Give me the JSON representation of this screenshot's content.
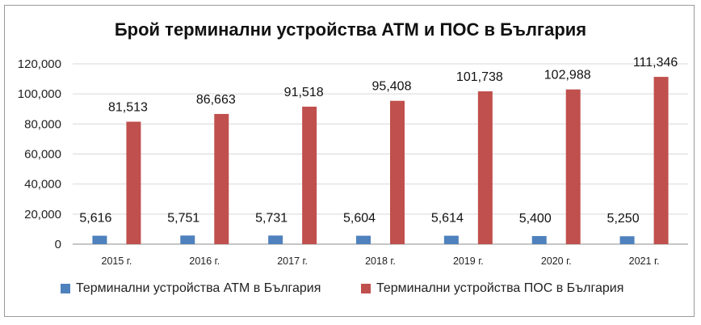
{
  "chart_data": {
    "type": "bar",
    "title": "Брой терминални устройства АТМ и ПОС в България",
    "categories": [
      "2015 г.",
      "2016 г.",
      "2017 г.",
      "2018 г.",
      "2019 г.",
      "2020 г.",
      "2021 г."
    ],
    "series": [
      {
        "name": "Терминални устройства АТМ в България",
        "color": "#4f81bd",
        "values": [
          5616,
          5751,
          5731,
          5604,
          5614,
          5400,
          5250
        ],
        "labels": [
          "5,616",
          "5,751",
          "5,731",
          "5,604",
          "5,614",
          "5,400",
          "5,250"
        ]
      },
      {
        "name": "Терминални устройства ПОС в България",
        "color": "#c0504d",
        "values": [
          81513,
          86663,
          91518,
          95408,
          101738,
          102988,
          111346
        ],
        "labels": [
          "81,513",
          "86,663",
          "91,518",
          "95,408",
          "101,738",
          "102,988",
          "111,346"
        ]
      }
    ],
    "yticks": [
      "0",
      "20,000",
      "40,000",
      "60,000",
      "80,000",
      "100,000",
      "120,000"
    ],
    "ylim": [
      0,
      120000
    ],
    "xlabel": "",
    "ylabel": "",
    "grid": true,
    "legend_position": "bottom"
  }
}
